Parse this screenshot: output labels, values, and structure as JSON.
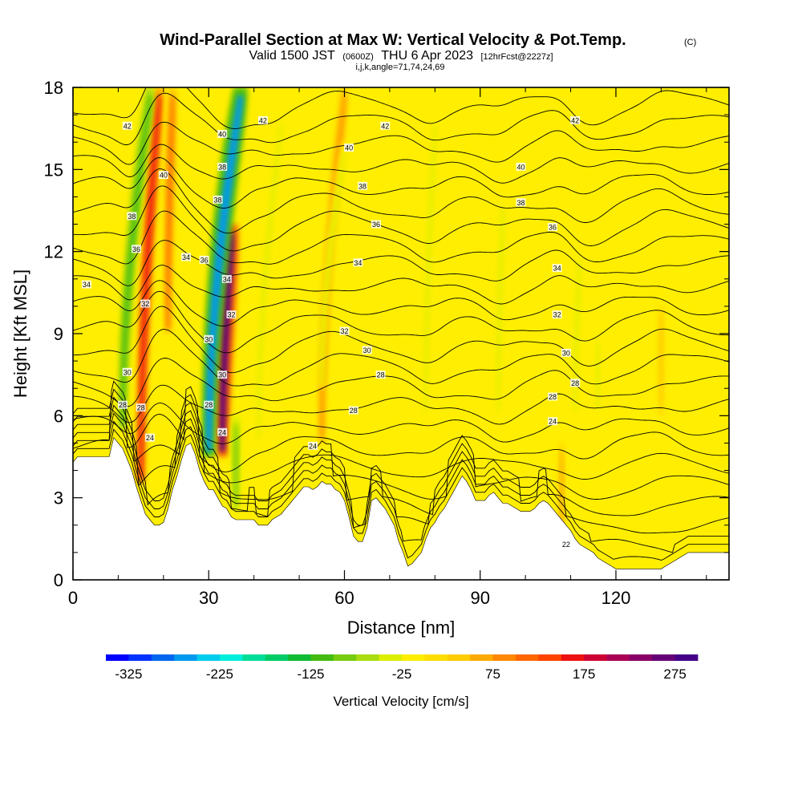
{
  "chart_data": {
    "type": "heatmap",
    "title": "Wind-Parallel Section at Max W: Vertical Velocity & Pot.Temp.",
    "copyright": "(C)",
    "subtitle": {
      "valid": "Valid 1500 JST",
      "zulu": "(0600Z)",
      "date": "THU 6 Apr 2023",
      "fcst": "[12hrFcst@2227z]"
    },
    "index_note": "i,j,k,angle=71,74,24,69",
    "xlabel": "Distance [nm]",
    "ylabel": "Height [Kft MSL]",
    "xlim": [
      0,
      145
    ],
    "ylim": [
      0,
      18
    ],
    "xticks": [
      "0",
      "30",
      "60",
      "90",
      "120"
    ],
    "yticks": [
      "0",
      "3",
      "6",
      "9",
      "12",
      "15",
      "18"
    ],
    "colorbar": {
      "label": "Vertical Velocity [cm/s]",
      "ticks": [
        "-325",
        "-225",
        "-125",
        "-25",
        "75",
        "175",
        "275"
      ],
      "min": -350,
      "max": 300,
      "step": 25,
      "colors": [
        "#0000ff",
        "#0033ff",
        "#0066ee",
        "#0099ee",
        "#00ccee",
        "#00eedd",
        "#00dd99",
        "#00cc66",
        "#11bb33",
        "#44bb11",
        "#77cc11",
        "#aadd11",
        "#ddee00",
        "#ffee00",
        "#ffdd00",
        "#ffcc00",
        "#ffaa00",
        "#ff8800",
        "#ff6600",
        "#ff4400",
        "#ee1111",
        "#cc0033",
        "#aa0055",
        "#880066",
        "#660077",
        "#440088"
      ]
    },
    "background_color": "#ffee00",
    "vertical_velocity_features": [
      {
        "kind": "updraft",
        "x": 15,
        "y_bottom": 3.5,
        "y_top": 18,
        "lean": 4,
        "value": 150
      },
      {
        "kind": "downdraft",
        "x": 11,
        "y_bottom": 5.5,
        "y_top": 18,
        "lean": 6,
        "value": -125
      },
      {
        "kind": "updraft",
        "x": 33,
        "y_bottom": 4.5,
        "y_top": 13,
        "lean": 2,
        "value": 250
      },
      {
        "kind": "downdraft",
        "x": 30,
        "y_bottom": 4.5,
        "y_top": 18,
        "lean": 7,
        "value": -275
      },
      {
        "kind": "updraft",
        "x": 21,
        "y_bottom": 9,
        "y_top": 18,
        "lean": 1,
        "value": 100
      },
      {
        "kind": "downdraft",
        "x": 36,
        "y_bottom": 2.5,
        "y_top": 6,
        "lean": 0,
        "value": -100
      },
      {
        "kind": "updraft",
        "x": 55,
        "y_bottom": 5,
        "y_top": 18,
        "lean": 5,
        "value": 75
      },
      {
        "kind": "downdraft",
        "x": 55,
        "y_bottom": 7,
        "y_top": 16,
        "lean": 5,
        "value": -50
      },
      {
        "kind": "downdraft",
        "x": 41,
        "y_bottom": 5,
        "y_top": 17,
        "lean": 5,
        "value": -50
      },
      {
        "kind": "downdraft",
        "x": 78,
        "y_bottom": 6,
        "y_top": 17,
        "lean": 2,
        "value": -50
      },
      {
        "kind": "downdraft",
        "x": 94,
        "y_bottom": 6,
        "y_top": 14,
        "lean": 1,
        "value": -50
      },
      {
        "kind": "downdraft",
        "x": 111,
        "y_bottom": 6,
        "y_top": 12,
        "lean": 1,
        "value": -50
      },
      {
        "kind": "downdraft",
        "x": 116,
        "y_bottom": 6,
        "y_top": 9,
        "lean": 0,
        "value": -40
      },
      {
        "kind": "updraft",
        "x": 108,
        "y_bottom": 1,
        "y_top": 5,
        "lean": 0,
        "value": 50
      },
      {
        "kind": "updraft",
        "x": 130,
        "y_bottom": 6,
        "y_top": 10,
        "lean": 0,
        "value": 40
      }
    ],
    "terrain": {
      "x": [
        0,
        1,
        8,
        9,
        10,
        11,
        12,
        13,
        14,
        15,
        16,
        17,
        18,
        19,
        20,
        21,
        22,
        23,
        24,
        25,
        26,
        27,
        28,
        29,
        30,
        31,
        32,
        33,
        34,
        35,
        36,
        37,
        38,
        39,
        40,
        41,
        42,
        43,
        44,
        45,
        46,
        47,
        48,
        49,
        50,
        51,
        52,
        53,
        54,
        55,
        56,
        57,
        58,
        59,
        60,
        61,
        62,
        63,
        64,
        65,
        66,
        67,
        68,
        69,
        70,
        71,
        72,
        73,
        74,
        75,
        76,
        77,
        78,
        79,
        80,
        81,
        82,
        83,
        84,
        85,
        86,
        87,
        88,
        89,
        90,
        91,
        92,
        93,
        94,
        95,
        96,
        97,
        98,
        99,
        100,
        101,
        102,
        103,
        104,
        105,
        106,
        107,
        108,
        109,
        110,
        111,
        112,
        113,
        114,
        115,
        116,
        117,
        118,
        119,
        120,
        121,
        122,
        123,
        124,
        125,
        126,
        127,
        128,
        129,
        130,
        131,
        132,
        133,
        134,
        135,
        136,
        137,
        138,
        139,
        140,
        141,
        142,
        143,
        144,
        145
      ],
      "height": [
        4.3,
        4.5,
        4.5,
        5.2,
        5.0,
        4.8,
        4.4,
        4.0,
        3.4,
        2.9,
        2.4,
        2.2,
        2.0,
        2.0,
        2.1,
        2.6,
        3.3,
        3.8,
        4.4,
        4.9,
        5.0,
        4.6,
        4.0,
        3.6,
        3.3,
        3.3,
        3.0,
        2.7,
        2.6,
        2.3,
        2.2,
        2.2,
        2.2,
        2.2,
        2.2,
        2.0,
        2.0,
        2.0,
        2.2,
        2.3,
        2.4,
        2.6,
        2.8,
        3.0,
        3.2,
        3.4,
        3.4,
        3.3,
        3.4,
        3.6,
        3.5,
        3.5,
        3.3,
        3.2,
        2.9,
        2.3,
        1.6,
        1.4,
        1.4,
        1.9,
        2.9,
        3.0,
        2.8,
        2.6,
        2.3,
        2.0,
        1.4,
        1.0,
        0.5,
        0.6,
        0.8,
        1.0,
        1.5,
        1.9,
        2.1,
        2.4,
        2.6,
        2.9,
        3.2,
        3.5,
        3.8,
        3.6,
        3.3,
        2.9,
        2.9,
        2.9,
        3.1,
        3.2,
        3.0,
        2.8,
        2.8,
        2.7,
        2.6,
        2.5,
        2.5,
        2.5,
        2.6,
        2.8,
        2.9,
        2.8,
        2.6,
        2.4,
        2.2,
        2.0,
        1.8,
        1.5,
        1.3,
        1.2,
        1.1,
        1.0,
        0.8,
        0.7,
        0.6,
        0.5,
        0.4,
        0.4,
        0.4,
        0.4,
        0.4,
        0.4,
        0.4,
        0.4,
        0.4,
        0.4,
        0.4,
        0.5,
        0.6,
        0.7,
        0.8,
        0.9,
        1.0,
        1.0,
        1.0,
        1.0,
        1.0,
        1.0,
        1.0,
        1.0,
        1.0,
        1.0
      ]
    },
    "theta_contour_labels": [
      {
        "text": "42",
        "x": 12,
        "y": 16.6
      },
      {
        "text": "42",
        "x": 42,
        "y": 16.8
      },
      {
        "text": "42",
        "x": 69,
        "y": 16.6
      },
      {
        "text": "42",
        "x": 111,
        "y": 16.8
      },
      {
        "text": "40",
        "x": 33,
        "y": 16.3
      },
      {
        "text": "40",
        "x": 61,
        "y": 15.8
      },
      {
        "text": "40",
        "x": 99,
        "y": 15.1
      },
      {
        "text": "40",
        "x": 20,
        "y": 14.8
      },
      {
        "text": "38",
        "x": 33,
        "y": 15.1
      },
      {
        "text": "38",
        "x": 64,
        "y": 14.4
      },
      {
        "text": "38",
        "x": 99,
        "y": 13.8
      },
      {
        "text": "38",
        "x": 32,
        "y": 13.9
      },
      {
        "text": "38",
        "x": 13,
        "y": 13.3
      },
      {
        "text": "36",
        "x": 67,
        "y": 13.0
      },
      {
        "text": "36",
        "x": 106,
        "y": 12.9
      },
      {
        "text": "36",
        "x": 14,
        "y": 12.1
      },
      {
        "text": "36",
        "x": 29,
        "y": 11.7
      },
      {
        "text": "34",
        "x": 25,
        "y": 11.8
      },
      {
        "text": "34",
        "x": 63,
        "y": 11.6
      },
      {
        "text": "34",
        "x": 107,
        "y": 11.4
      },
      {
        "text": "34",
        "x": 34,
        "y": 11.0
      },
      {
        "text": "34",
        "x": 3,
        "y": 10.8
      },
      {
        "text": "32",
        "x": 16,
        "y": 10.1
      },
      {
        "text": "32",
        "x": 35,
        "y": 9.7
      },
      {
        "text": "32",
        "x": 60,
        "y": 9.1
      },
      {
        "text": "32",
        "x": 107,
        "y": 9.7
      },
      {
        "text": "30",
        "x": 30,
        "y": 8.8
      },
      {
        "text": "30",
        "x": 65,
        "y": 8.4
      },
      {
        "text": "30",
        "x": 109,
        "y": 8.3
      },
      {
        "text": "30",
        "x": 12,
        "y": 7.6
      },
      {
        "text": "30",
        "x": 33,
        "y": 7.5
      },
      {
        "text": "28",
        "x": 68,
        "y": 7.5
      },
      {
        "text": "28",
        "x": 111,
        "y": 7.2
      },
      {
        "text": "28",
        "x": 106,
        "y": 6.7
      },
      {
        "text": "28",
        "x": 62,
        "y": 6.2
      },
      {
        "text": "28",
        "x": 11,
        "y": 6.4
      },
      {
        "text": "28",
        "x": 15,
        "y": 6.3
      },
      {
        "text": "28",
        "x": 30,
        "y": 6.4
      },
      {
        "text": "24",
        "x": 106,
        "y": 5.8
      },
      {
        "text": "24",
        "x": 17,
        "y": 5.2
      },
      {
        "text": "24",
        "x": 33,
        "y": 5.4
      },
      {
        "text": "24",
        "x": 53,
        "y": 4.9
      },
      {
        "text": "22",
        "x": 109,
        "y": 1.3
      }
    ],
    "theta_contour_count": 24,
    "grid": false,
    "legend": "colorbar-bottom"
  }
}
